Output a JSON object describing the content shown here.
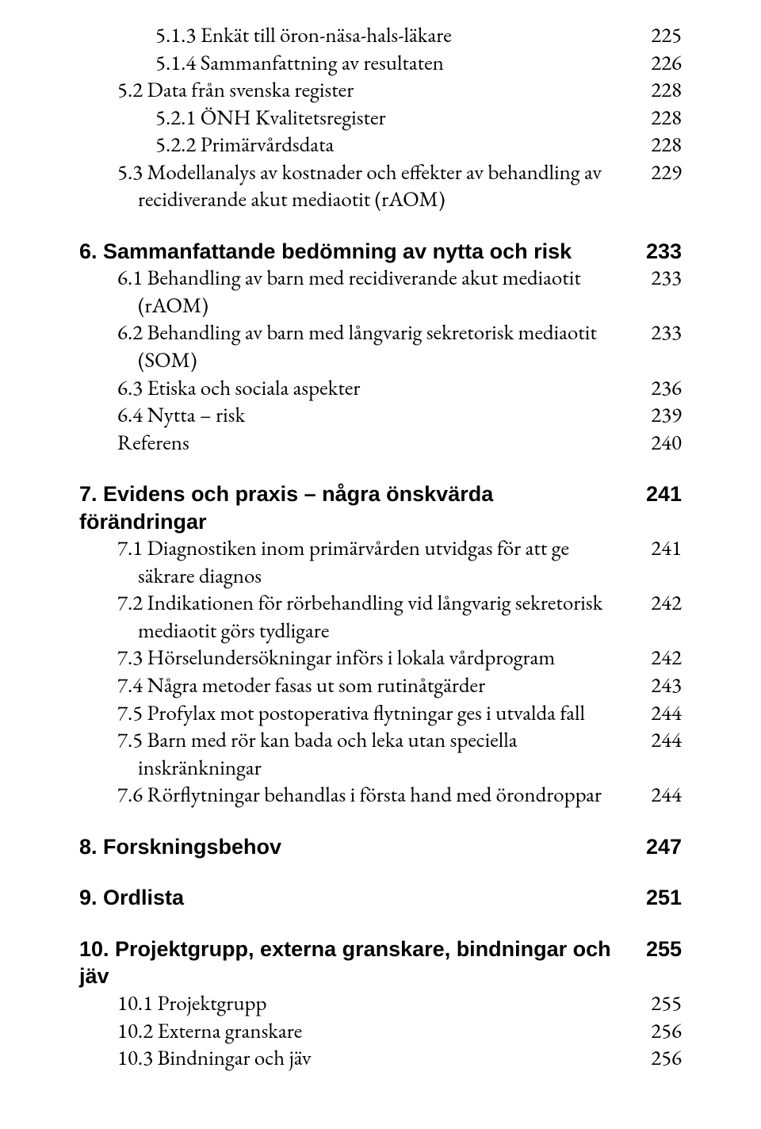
{
  "colors": {
    "text": "#000000",
    "background": "#ffffff"
  },
  "typography": {
    "body_fontsize_pt": 20,
    "bold_fontfamily": "Arial",
    "body_fontfamily": "Garamond"
  },
  "toc": [
    {
      "level": 2,
      "bold": false,
      "label": "5.1.3 Enkät till öron-näsa-hals-läkare",
      "page": "225"
    },
    {
      "level": 2,
      "bold": false,
      "label": "5.1.4 Sammanfattning av resultaten",
      "page": "226"
    },
    {
      "level": 1,
      "bold": false,
      "label": "5.2 Data från svenska register",
      "page": "228"
    },
    {
      "level": 2,
      "bold": false,
      "label": "5.2.1 ÖNH Kvalitetsregister",
      "page": "228"
    },
    {
      "level": 2,
      "bold": false,
      "label": "5.2.2 Primärvårdsdata",
      "page": "228"
    },
    {
      "level": 1,
      "bold": false,
      "label": "5.3 Modellanalys av kostnader och effekter av behandling av recidiverande akut mediaotit (rAOM)",
      "page": "229",
      "wrap": true
    },
    {
      "group": true
    },
    {
      "level": 0,
      "bold": true,
      "label": "6.  Sammanfattande bedömning av nytta och risk",
      "page": "233"
    },
    {
      "level": 1,
      "bold": false,
      "label": "6.1 Behandling av barn med recidiverande akut mediaotit (rAOM)",
      "page": "233",
      "wrap": true
    },
    {
      "level": 1,
      "bold": false,
      "label": "6.2 Behandling av barn med långvarig sekretorisk mediaotit (SOM)",
      "page": "233",
      "wrap": true
    },
    {
      "level": 1,
      "bold": false,
      "label": "6.3 Etiska och sociala aspekter",
      "page": "236"
    },
    {
      "level": 1,
      "bold": false,
      "label": "6.4 Nytta – risk",
      "page": "239"
    },
    {
      "level": 1,
      "bold": false,
      "label": "Referens",
      "page": "240"
    },
    {
      "group": true
    },
    {
      "level": 0,
      "bold": true,
      "label": "7.  Evidens och praxis – några önskvärda förändringar",
      "page": "241"
    },
    {
      "level": 1,
      "bold": false,
      "label": "7.1 Diagnostiken inom primärvården utvidgas för att ge säkrare diagnos",
      "page": "241",
      "wrap": true
    },
    {
      "level": 1,
      "bold": false,
      "label": "7.2 Indikationen för rörbehandling vid långvarig sekretorisk mediaotit görs tydligare",
      "page": "242",
      "wrap": true
    },
    {
      "level": 1,
      "bold": false,
      "label": "7.3 Hörselundersökningar införs i lokala vårdprogram",
      "page": "242"
    },
    {
      "level": 1,
      "bold": false,
      "label": "7.4 Några metoder fasas ut som rutinåtgärder",
      "page": "243"
    },
    {
      "level": 1,
      "bold": false,
      "label": "7.5 Profylax mot postoperativa flytningar ges i utvalda fall",
      "page": "244"
    },
    {
      "level": 1,
      "bold": false,
      "label": "7.5 Barn med rör kan bada och leka utan speciella inskränkningar",
      "page": "244",
      "wrap": true
    },
    {
      "level": 1,
      "bold": false,
      "label": "7.6 Rörflytningar behandlas i första hand med örondroppar",
      "page": "244"
    },
    {
      "group": true
    },
    {
      "level": 0,
      "bold": true,
      "label": "8.  Forskningsbehov",
      "page": "247"
    },
    {
      "group": true
    },
    {
      "level": 0,
      "bold": true,
      "label": "9.  Ordlista",
      "page": "251"
    },
    {
      "group": true
    },
    {
      "level": 0,
      "bold": true,
      "label": "10. Projektgrupp, externa granskare, bindningar och jäv",
      "page": "255"
    },
    {
      "level": 1,
      "bold": false,
      "label": "10.1 Projektgrupp",
      "page": "255"
    },
    {
      "level": 1,
      "bold": false,
      "label": "10.2 Externa granskare",
      "page": "256"
    },
    {
      "level": 1,
      "bold": false,
      "label": "10.3 Bindningar och jäv",
      "page": "256"
    }
  ]
}
